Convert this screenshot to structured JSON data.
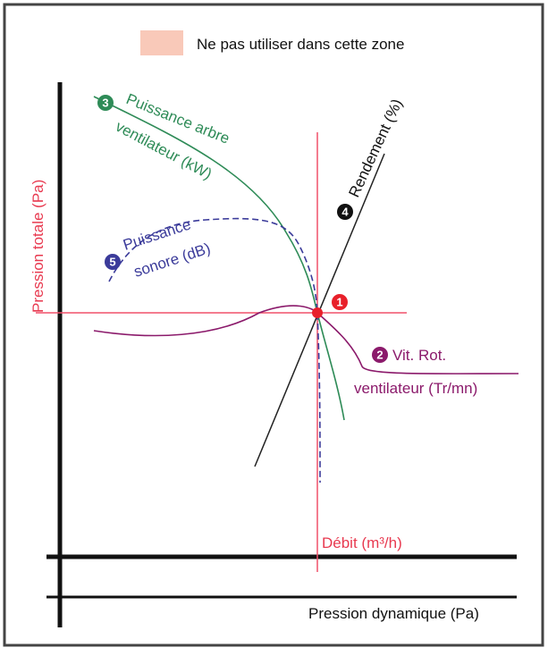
{
  "legend": {
    "label": "Ne pas utiliser dans cette zone"
  },
  "axes": {
    "y": "Pression totale (Pa)",
    "flow": "Débit (m³/h)",
    "dynamic": "Pression dynamique (Pa)"
  },
  "curves": {
    "operating_point": {
      "number": "1"
    },
    "speed": {
      "number": "2",
      "line1": "Vit. Rot.",
      "line2": "ventilateur (Tr/mn)"
    },
    "shaft_power": {
      "number": "3",
      "line1": "Puissance arbre",
      "line2": "ventilateur (kW)"
    },
    "efficiency": {
      "number": "4",
      "label": "Rendement (%)"
    },
    "sound_power": {
      "number": "5",
      "line1": "Puissance",
      "line2": "sonore (dB)"
    }
  }
}
